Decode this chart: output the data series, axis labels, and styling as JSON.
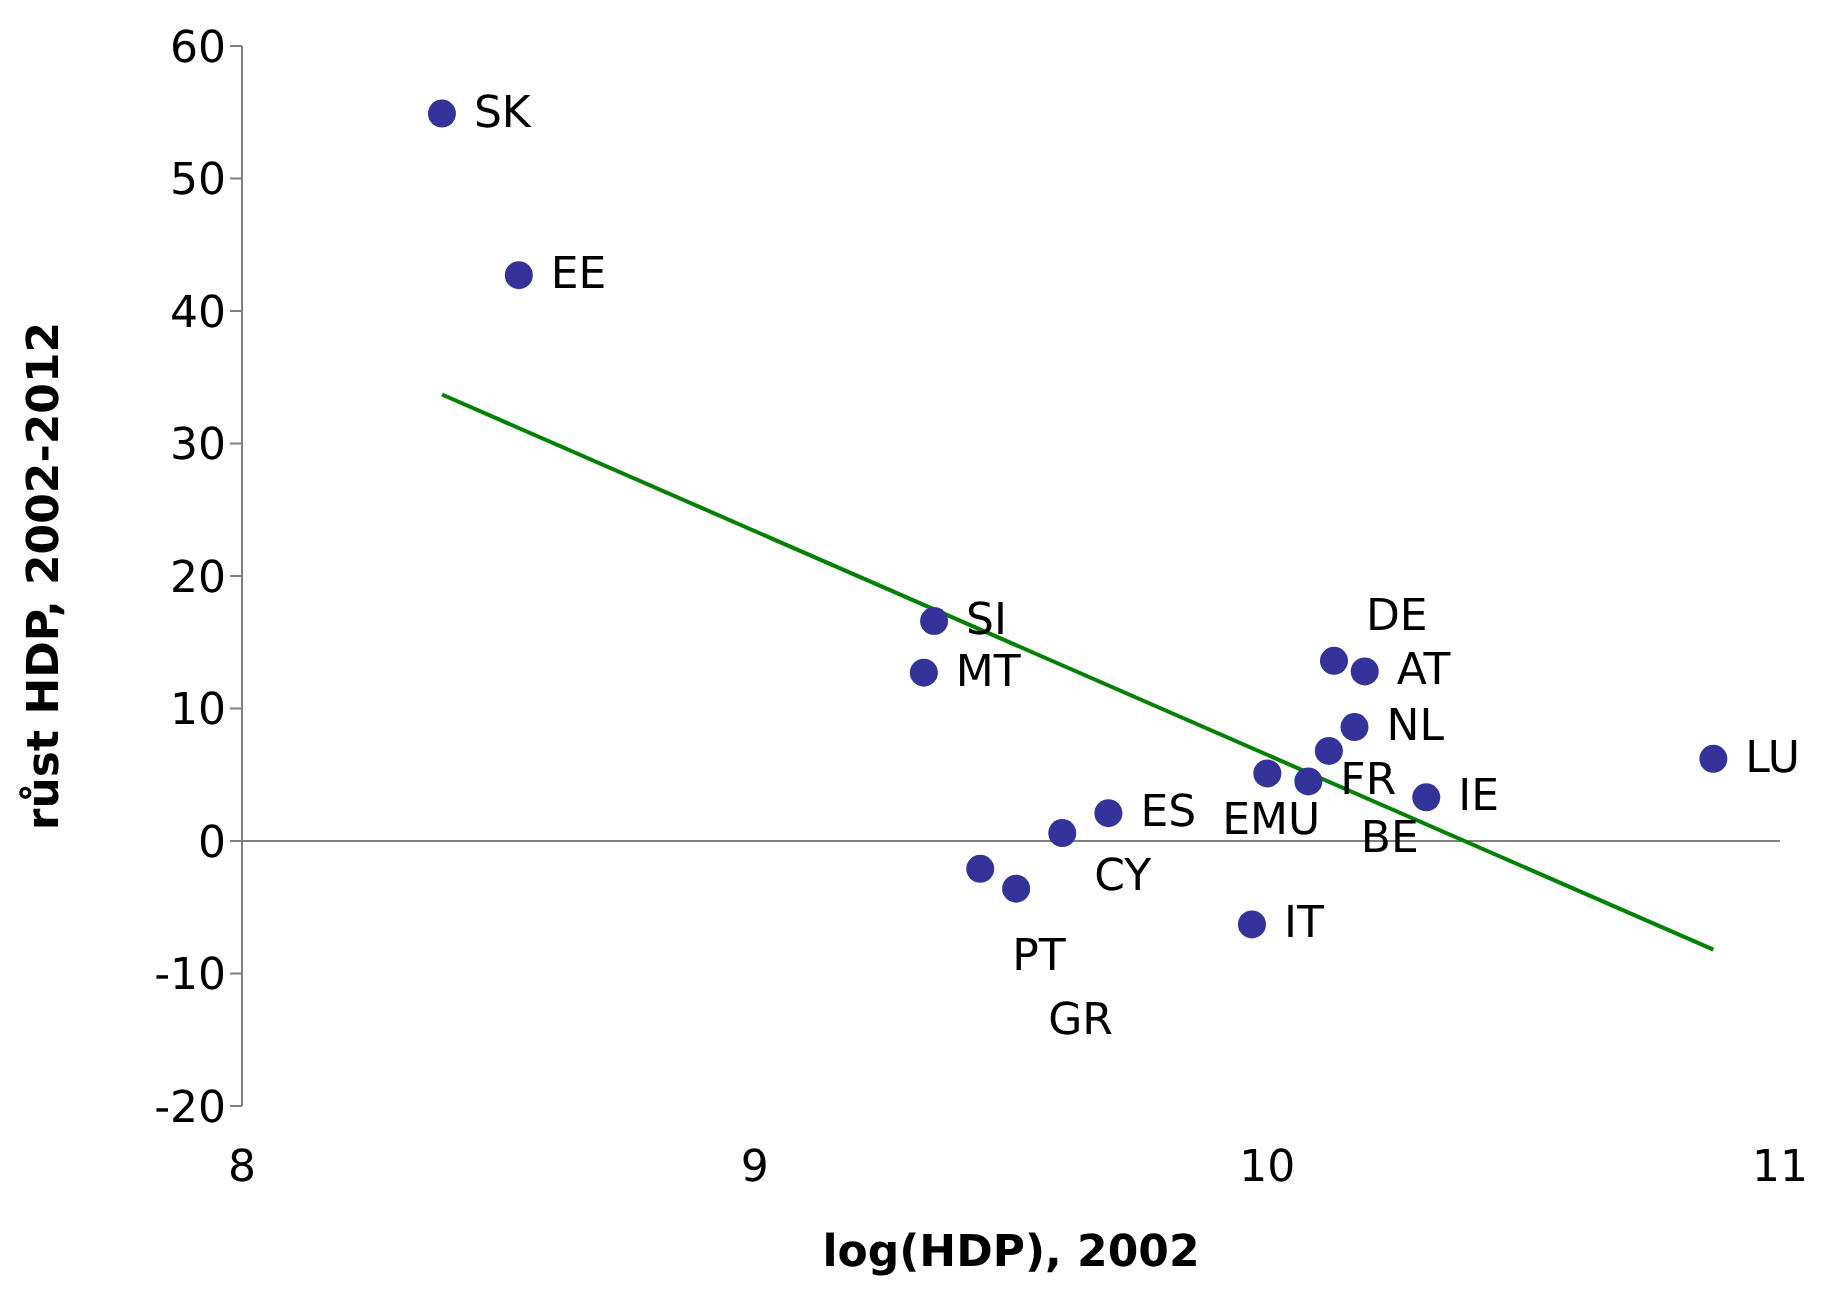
{
  "chart_data": {
    "type": "scatter",
    "xlabel": "log(HDP), 2002",
    "ylabel": "růst HDP, 2002-2012",
    "xlim": [
      8,
      11
    ],
    "xticks": [
      8,
      9,
      10,
      11
    ],
    "ylim": [
      -20,
      60
    ],
    "yticks": [
      -20,
      -10,
      0,
      10,
      20,
      30,
      40,
      50,
      60
    ],
    "grid": false,
    "legend": false,
    "marker": "circle",
    "ref_lines": [
      {
        "axis": "y",
        "value": 0,
        "color": "#808080"
      }
    ],
    "series": [
      {
        "color": "#333399",
        "x": [
          8.39,
          8.54,
          9.35,
          9.33,
          9.69,
          9.6,
          9.44,
          9.51,
          9.97,
          10.13,
          10.19,
          10.17,
          10.12,
          10.0,
          10.08,
          10.31,
          10.87
        ],
        "values": [
          54.9,
          42.7,
          16.6,
          12.7,
          2.1,
          0.6,
          -2.1,
          -3.6,
          -6.3,
          13.6,
          12.8,
          8.6,
          6.8,
          5.1,
          4.5,
          3.3,
          6.2
        ],
        "value_labels": [
          "SK",
          "EE",
          "SI",
          "MT",
          "ES",
          "CY",
          "PT",
          "GR",
          "IT",
          "DE",
          "AT",
          "NL",
          "BE",
          "EMU",
          "FR",
          "IE",
          "LU"
        ]
      },
      {
        "type": "line",
        "color": "#008000",
        "x": [
          8.39,
          10.87
        ],
        "values": [
          33.7,
          -8.2
        ],
        "marker": "none"
      }
    ]
  }
}
